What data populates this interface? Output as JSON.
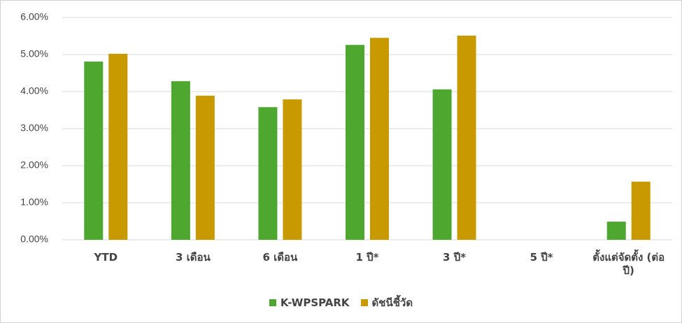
{
  "chart_data": {
    "type": "bar",
    "categories": [
      "YTD",
      "3 เดือน",
      "6 เดือน",
      "1 ปี*",
      "3 ปี*",
      "5 ปี*",
      "ตั้งแต่จัดตั้ง (ต่อปี)"
    ],
    "series": [
      {
        "name": "K-WPSPARK",
        "color": "#4ea72e",
        "values": [
          4.81,
          4.28,
          3.58,
          5.26,
          4.06,
          null,
          0.49
        ]
      },
      {
        "name": "ดัชนีชี้วัด",
        "color": "#c89a00",
        "values": [
          5.02,
          3.89,
          3.79,
          5.45,
          5.51,
          null,
          1.57
        ]
      }
    ],
    "ylim": [
      0,
      6
    ],
    "yticks": [
      {
        "value": 0,
        "label": "0.00%"
      },
      {
        "value": 1,
        "label": "1.00%"
      },
      {
        "value": 2,
        "label": "2.00%"
      },
      {
        "value": 3,
        "label": "3.00%"
      },
      {
        "value": 4,
        "label": "4.00%"
      },
      {
        "value": 5,
        "label": "5.00%"
      },
      {
        "value": 6,
        "label": "6.00%"
      }
    ],
    "grid": true
  }
}
